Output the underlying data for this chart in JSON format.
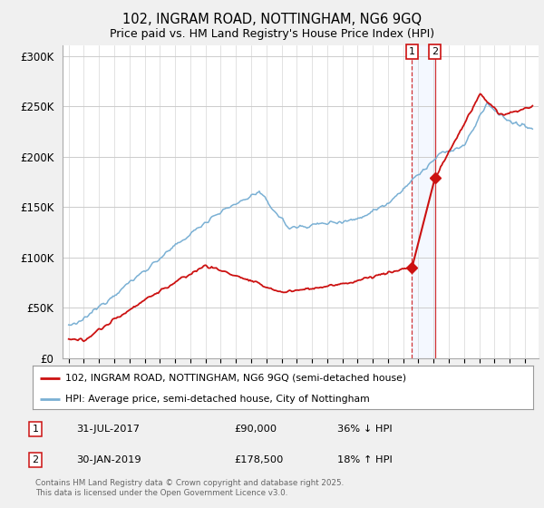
{
  "title": "102, INGRAM ROAD, NOTTINGHAM, NG6 9GQ",
  "subtitle": "Price paid vs. HM Land Registry's House Price Index (HPI)",
  "title_fontsize": 10.5,
  "subtitle_fontsize": 9,
  "background_color": "#f0f0f0",
  "plot_bg_color": "#ffffff",
  "hpi_color": "#7ab0d4",
  "price_color": "#cc1111",
  "ylim": [
    0,
    310000
  ],
  "yticks": [
    0,
    50000,
    100000,
    150000,
    200000,
    250000,
    300000
  ],
  "ytick_labels": [
    "£0",
    "£50K",
    "£100K",
    "£150K",
    "£200K",
    "£250K",
    "£300K"
  ],
  "xstart_year": 1995,
  "xend_year": 2025,
  "transaction1": {
    "label": "1",
    "date": "31-JUL-2017",
    "price": 90000,
    "pct": "36% ↓ HPI",
    "year": 2017.58
  },
  "transaction2": {
    "label": "2",
    "date": "30-JAN-2019",
    "price": 178500,
    "pct": "18% ↑ HPI",
    "year": 2019.08
  },
  "legend_entries": [
    "102, INGRAM ROAD, NOTTINGHAM, NG6 9GQ (semi-detached house)",
    "HPI: Average price, semi-detached house, City of Nottingham"
  ],
  "footer": "Contains HM Land Registry data © Crown copyright and database right 2025.\nThis data is licensed under the Open Government Licence v3.0."
}
